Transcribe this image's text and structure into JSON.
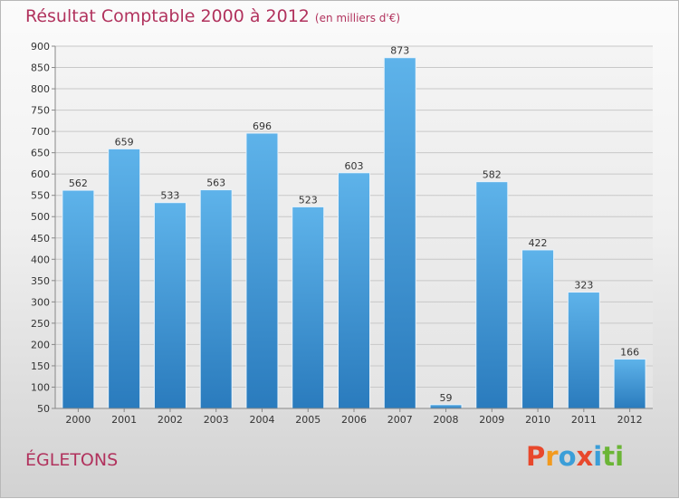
{
  "page": {
    "title": "Résultat Comptable 2000 à 2012",
    "title_note": "(en milliers d'€)",
    "city": "ÉGLETONS",
    "logo_text": "Proxiti",
    "logo_colors": [
      "#e8482c",
      "#f29a1e",
      "#3b9ed8",
      "#e8482c",
      "#3b9ed8",
      "#6bb536",
      "#6bb536"
    ],
    "title_color": "#b1325d"
  },
  "chart_data": {
    "type": "bar",
    "title": "Résultat Comptable 2000 à 2012",
    "subtitle": "(en milliers d'€)",
    "xlabel": "",
    "ylabel": "",
    "categories": [
      "2000",
      "2001",
      "2002",
      "2003",
      "2004",
      "2005",
      "2006",
      "2007",
      "2008",
      "2009",
      "2010",
      "2011",
      "2012"
    ],
    "values": [
      562,
      659,
      533,
      563,
      696,
      523,
      603,
      873,
      59,
      582,
      422,
      323,
      166
    ],
    "ylim": [
      50,
      900
    ],
    "yticks": [
      50,
      100,
      150,
      200,
      250,
      300,
      350,
      400,
      450,
      500,
      550,
      600,
      650,
      700,
      750,
      800,
      850,
      900
    ],
    "grid": true,
    "bar_color_top": "#5eb3ea",
    "bar_color_bottom": "#2a7bbd"
  }
}
